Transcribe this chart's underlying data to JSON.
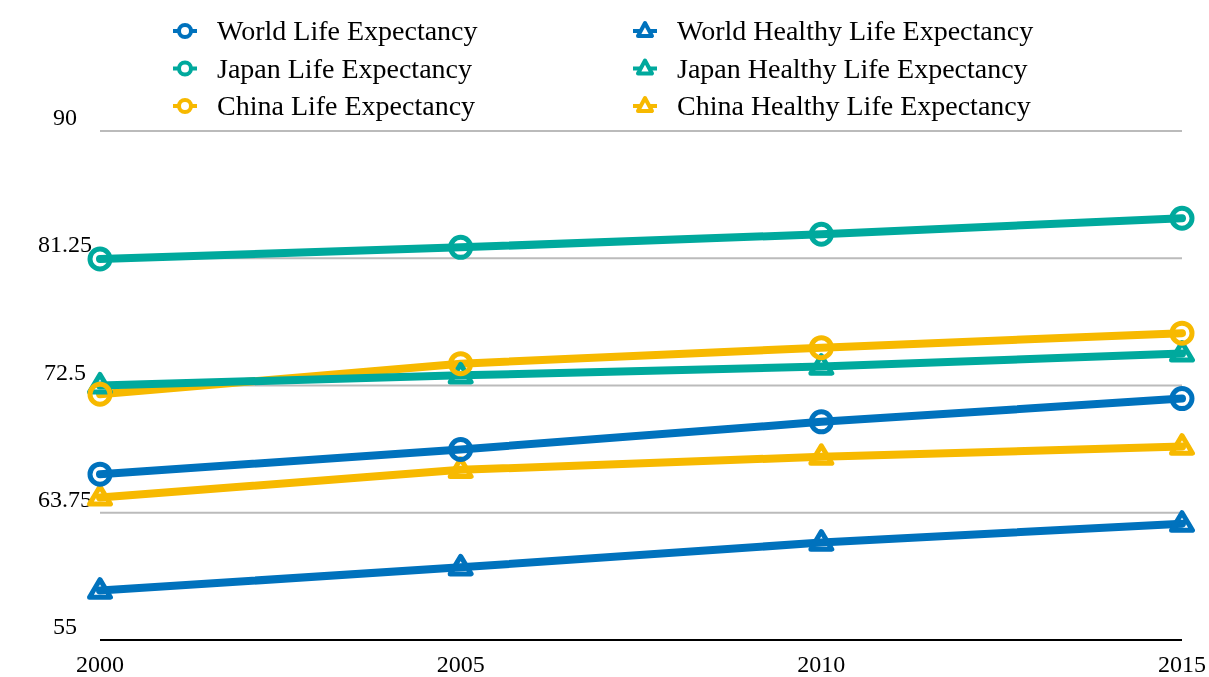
{
  "chart_data": {
    "type": "line",
    "x": [
      2000,
      2005,
      2010,
      2015
    ],
    "xlim": [
      2000,
      2015
    ],
    "xticks": [
      2000,
      2005,
      2010,
      2015
    ],
    "ylim": [
      55,
      90
    ],
    "yticks": [
      55,
      63.75,
      72.5,
      81.25,
      90
    ],
    "grid": "y",
    "legend": "top",
    "line_style": "solid",
    "series": [
      {
        "name": "World Life Expectancy",
        "color": "#0072bd",
        "marker": "circle",
        "values": [
          66.4,
          68.1,
          70.0,
          71.6
        ]
      },
      {
        "name": "Japan Life Expectancy",
        "color": "#00a99d",
        "marker": "circle",
        "values": [
          81.2,
          82.0,
          82.9,
          84.0
        ]
      },
      {
        "name": "China Life Expectancy",
        "color": "#f7b900",
        "marker": "circle",
        "values": [
          71.9,
          74.0,
          75.1,
          76.1
        ]
      },
      {
        "name": "World Healthy Life Expectancy",
        "color": "#0072bd",
        "marker": "triangle",
        "values": [
          58.4,
          60.0,
          61.7,
          63.0
        ]
      },
      {
        "name": "Japan Healthy Life Expectancy",
        "color": "#00a99d",
        "marker": "triangle",
        "values": [
          72.5,
          73.2,
          73.8,
          74.7
        ]
      },
      {
        "name": "China Healthy Life Expectancy",
        "color": "#f7b900",
        "marker": "triangle",
        "values": [
          64.8,
          66.7,
          67.6,
          68.3
        ]
      }
    ]
  }
}
